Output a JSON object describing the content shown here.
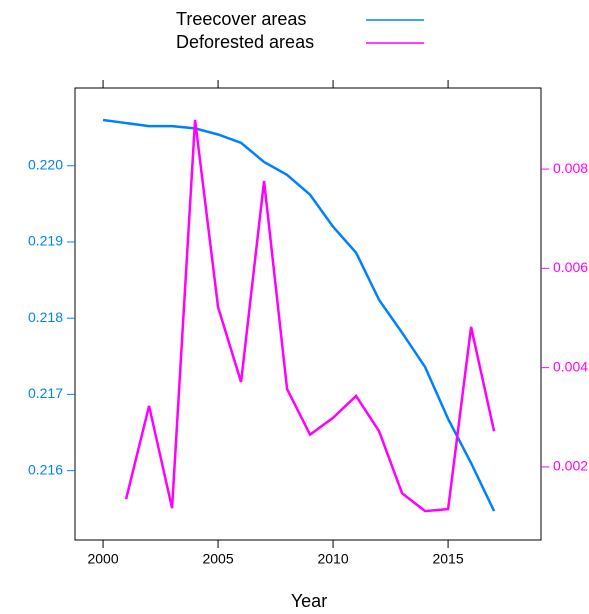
{
  "chart_data": {
    "type": "line",
    "xlabel": "Year",
    "x": [
      2000,
      2001,
      2002,
      2003,
      2004,
      2005,
      2006,
      2007,
      2008,
      2009,
      2010,
      2011,
      2012,
      2013,
      2014,
      2015,
      2016,
      2017
    ],
    "series": [
      {
        "name": "Treecover areas",
        "color": "#0080ff",
        "values": [
          0.2206,
          0.22056,
          0.22052,
          0.22052,
          0.22049,
          0.22041,
          0.2203,
          0.22005,
          0.21988,
          0.21962,
          0.2192,
          0.21886,
          0.21824,
          0.21781,
          0.21736,
          0.21668,
          0.2161,
          0.21547
        ]
      },
      {
        "name": "Deforested areas",
        "color": "#ff00ff",
        "axis": "y2",
        "values": [
          null,
          0.00135,
          0.00323,
          0.00117,
          0.00899,
          0.00522,
          0.00371,
          0.00776,
          0.00357,
          0.00265,
          0.00299,
          0.00343,
          0.00272,
          0.00147,
          0.00111,
          0.00115,
          0.00482,
          0.00272
        ]
      }
    ],
    "xlim": [
      1998.78,
      2019.04
    ],
    "xticks": [
      2000,
      2005,
      2010,
      2015
    ],
    "ylim": [
      0.21509,
      0.22102
    ],
    "yticks": [
      {
        "value": 0.22,
        "label": "0.220"
      },
      0.219,
      0.218,
      0.217,
      0.216
    ],
    "y2lim": [
      0.000528,
      0.009633
    ],
    "y2ticks": [
      0.008,
      0.006,
      0.004,
      0.002
    ],
    "legend": "top"
  }
}
